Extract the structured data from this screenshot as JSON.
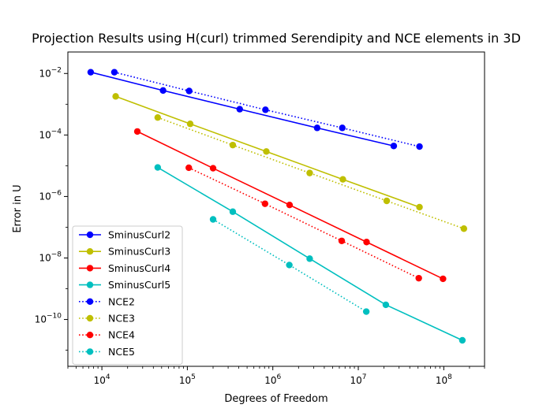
{
  "chart_data": {
    "type": "line",
    "title": "Projection Results using H(curl) trimmed Serendipity and NCE elements in 3D",
    "xlabel": "Degrees of Freedom",
    "ylabel": "Error in U",
    "xscale": "log",
    "yscale": "log",
    "xlim": [
      4000,
      300000000
    ],
    "ylim": [
      3e-12,
      0.05
    ],
    "xticks": [
      {
        "value": 10000,
        "base": "10",
        "exp": "4"
      },
      {
        "value": 100000,
        "base": "10",
        "exp": "5"
      },
      {
        "value": 1000000,
        "base": "10",
        "exp": "6"
      },
      {
        "value": 10000000,
        "base": "10",
        "exp": "7"
      },
      {
        "value": 100000000,
        "base": "10",
        "exp": "8"
      }
    ],
    "yticks": [
      {
        "value": 1e-10,
        "base": "10",
        "exp": "−10"
      },
      {
        "value": 1e-08,
        "base": "10",
        "exp": "−8"
      },
      {
        "value": 1e-06,
        "base": "10",
        "exp": "−6"
      },
      {
        "value": 0.0001,
        "base": "10",
        "exp": "−4"
      },
      {
        "value": 0.01,
        "base": "10",
        "exp": "−2"
      }
    ],
    "grid": false,
    "legend_position": "lower-left",
    "series": [
      {
        "name": "SminusCurl2",
        "color": "#0000ff",
        "linestyle": "solid",
        "marker": "circle",
        "x": [
          7400,
          52000,
          410000,
          3300000,
          26000000
        ],
        "y": [
          0.011,
          0.0028,
          0.00069,
          0.00017,
          4.4e-05
        ]
      },
      {
        "name": "SminusCurl3",
        "color": "#bfbf00",
        "linestyle": "solid",
        "marker": "circle",
        "x": [
          14500,
          108000,
          840000,
          6600000,
          52000000
        ],
        "y": [
          0.0018,
          0.00023,
          2.9e-05,
          3.6e-06,
          4.5e-07
        ]
      },
      {
        "name": "SminusCurl4",
        "color": "#ff0000",
        "linestyle": "solid",
        "marker": "circle",
        "x": [
          26000,
          200000,
          1570000,
          12500000,
          98000000
        ],
        "y": [
          0.00013,
          8.3e-06,
          5.3e-07,
          3.3e-08,
          2.1e-09
        ]
      },
      {
        "name": "SminusCurl5",
        "color": "#00bfbf",
        "linestyle": "solid",
        "marker": "circle",
        "x": [
          45000,
          340000,
          2700000,
          21000000,
          165000000
        ],
        "y": [
          8.8e-06,
          3.2e-07,
          9.5e-09,
          3e-10,
          2.1e-11
        ]
      },
      {
        "name": "NCE2",
        "color": "#0000ff",
        "linestyle": "dotted",
        "marker": "circle",
        "x": [
          14000,
          105000,
          820000,
          6500000,
          52000000
        ],
        "y": [
          0.011,
          0.0027,
          0.00066,
          0.00017,
          4.2e-05
        ]
      },
      {
        "name": "NCE3",
        "color": "#bfbf00",
        "linestyle": "dotted",
        "marker": "circle",
        "x": [
          45000,
          340000,
          2700000,
          21500000,
          172000000
        ],
        "y": [
          0.00037,
          4.7e-05,
          5.8e-06,
          7.2e-07,
          9e-08
        ]
      },
      {
        "name": "NCE4",
        "color": "#ff0000",
        "linestyle": "dotted",
        "marker": "circle",
        "x": [
          104000,
          810000,
          6400000,
          51000000
        ],
        "y": [
          8.6e-06,
          5.8e-07,
          3.6e-08,
          2.2e-09
        ]
      },
      {
        "name": "NCE5",
        "color": "#00bfbf",
        "linestyle": "dotted",
        "marker": "circle",
        "x": [
          200000,
          1560000,
          12400000
        ],
        "y": [
          1.8e-07,
          5.9e-09,
          1.8e-10
        ]
      }
    ]
  }
}
